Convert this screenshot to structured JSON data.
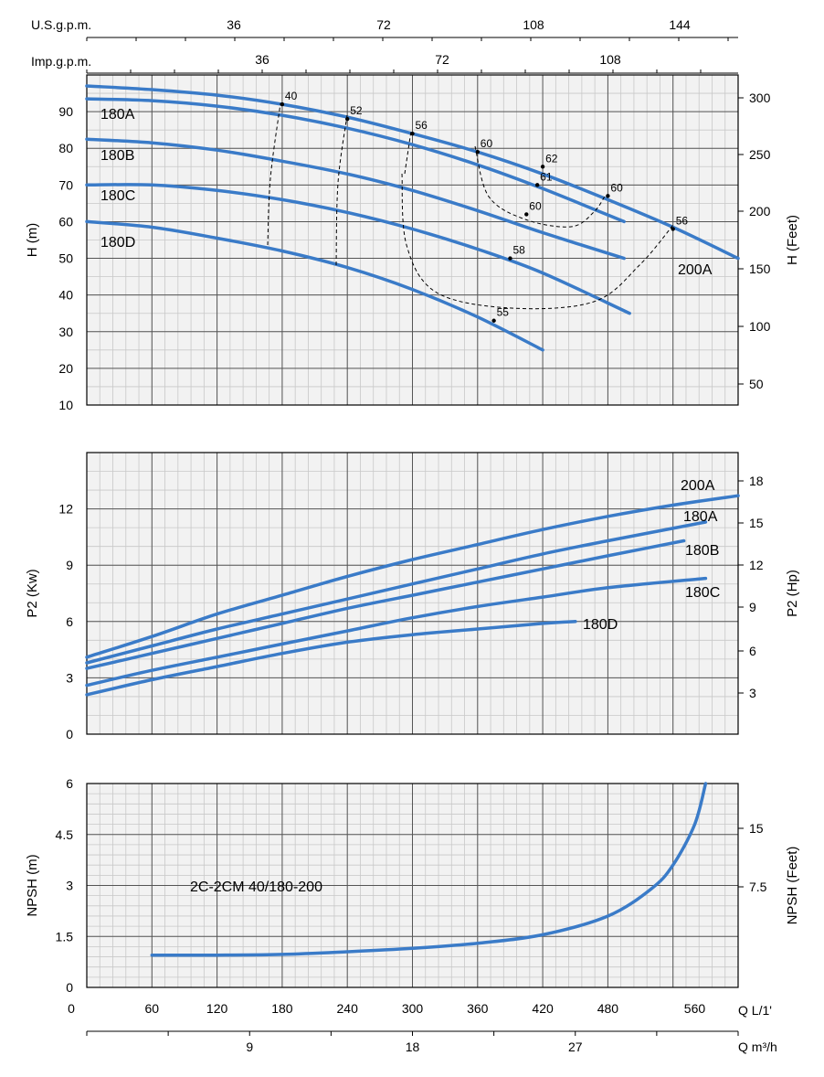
{
  "top_scales": {
    "usgpm_label": "U.S.g.p.m.",
    "usgpm_ticks": [
      "36",
      "72",
      "108",
      "144"
    ],
    "impgpm_label": "Imp.g.p.m.",
    "impgpm_ticks": [
      "36",
      "72",
      "108"
    ]
  },
  "bottom_scales": {
    "q_lmin_label": "Q L/1'",
    "q_m3h_label": "Q m³/h",
    "q_m3h_ticks": [
      "9",
      "18",
      "27"
    ]
  },
  "chart_data": [
    {
      "type": "line",
      "panel": "head",
      "ylabel": "H (m)",
      "ylabel_right": "H (Feet)",
      "xlim": [
        0,
        600
      ],
      "ylim": [
        10,
        100
      ],
      "yticks": [
        10,
        20,
        30,
        40,
        50,
        60,
        70,
        80,
        90
      ],
      "yticks_right": [
        50,
        100,
        150,
        200,
        250,
        300
      ],
      "series": [
        {
          "name": "200A",
          "x": [
            0,
            60,
            120,
            180,
            240,
            300,
            360,
            420,
            480,
            540,
            600
          ],
          "y": [
            97,
            96,
            94.5,
            92,
            88.5,
            84,
            79,
            73,
            66,
            58.5,
            50
          ]
        },
        {
          "name": "180A",
          "x": [
            0,
            60,
            120,
            180,
            240,
            300,
            360,
            420,
            495
          ],
          "y": [
            93.5,
            93,
            91.5,
            89,
            85.5,
            81,
            75.5,
            69,
            60
          ]
        },
        {
          "name": "180B",
          "x": [
            0,
            60,
            120,
            180,
            240,
            300,
            360,
            420,
            495
          ],
          "y": [
            82.5,
            81.5,
            79.5,
            76.5,
            73,
            68.5,
            63,
            57,
            50
          ]
        },
        {
          "name": "180C",
          "x": [
            0,
            60,
            120,
            180,
            240,
            300,
            360,
            420,
            500
          ],
          "y": [
            70,
            70,
            68.5,
            66,
            62.5,
            58,
            52.5,
            46,
            35
          ]
        },
        {
          "name": "180D",
          "x": [
            0,
            60,
            120,
            180,
            240,
            300,
            360,
            420
          ],
          "y": [
            60,
            58.5,
            55.5,
            52,
            47.5,
            41.5,
            34,
            25
          ]
        }
      ],
      "efficiency_labels": [
        {
          "text": "40",
          "x": 180,
          "y": 92
        },
        {
          "text": "52",
          "x": 240,
          "y": 88
        },
        {
          "text": "56",
          "x": 300,
          "y": 84
        },
        {
          "text": "60",
          "x": 360,
          "y": 79
        },
        {
          "text": "62",
          "x": 420,
          "y": 75
        },
        {
          "text": "61",
          "x": 415,
          "y": 70
        },
        {
          "text": "60",
          "x": 405,
          "y": 62
        },
        {
          "text": "60",
          "x": 480,
          "y": 67
        },
        {
          "text": "56",
          "x": 540,
          "y": 58
        },
        {
          "text": "58",
          "x": 390,
          "y": 50
        },
        {
          "text": "55",
          "x": 375,
          "y": 33
        }
      ]
    },
    {
      "type": "line",
      "panel": "power",
      "ylabel": "P2 (Kw)",
      "ylabel_right": "P2 (Hp)",
      "xlim": [
        0,
        600
      ],
      "ylim": [
        0,
        15
      ],
      "yticks": [
        0,
        3,
        6,
        9,
        12
      ],
      "yticks_right": [
        3,
        6,
        9,
        12,
        15,
        18
      ],
      "series": [
        {
          "name": "200A",
          "x": [
            0,
            60,
            120,
            180,
            240,
            300,
            360,
            420,
            480,
            540,
            600
          ],
          "y": [
            4.1,
            5.2,
            6.4,
            7.4,
            8.4,
            9.3,
            10.1,
            10.9,
            11.6,
            12.2,
            12.7
          ]
        },
        {
          "name": "180A",
          "x": [
            0,
            60,
            120,
            180,
            240,
            300,
            360,
            420,
            480,
            570
          ],
          "y": [
            3.8,
            4.7,
            5.6,
            6.4,
            7.2,
            8.0,
            8.8,
            9.6,
            10.3,
            11.3
          ]
        },
        {
          "name": "180B",
          "x": [
            0,
            60,
            120,
            180,
            240,
            300,
            360,
            420,
            480,
            550
          ],
          "y": [
            3.5,
            4.3,
            5.1,
            5.9,
            6.7,
            7.4,
            8.1,
            8.8,
            9.5,
            10.3
          ]
        },
        {
          "name": "180C",
          "x": [
            0,
            60,
            120,
            180,
            240,
            300,
            360,
            420,
            480,
            570
          ],
          "y": [
            2.6,
            3.4,
            4.1,
            4.8,
            5.5,
            6.2,
            6.8,
            7.3,
            7.8,
            8.3
          ]
        },
        {
          "name": "180D",
          "x": [
            0,
            60,
            120,
            180,
            240,
            300,
            360,
            420,
            450
          ],
          "y": [
            2.1,
            2.9,
            3.6,
            4.3,
            4.9,
            5.3,
            5.6,
            5.9,
            6.0
          ]
        }
      ]
    },
    {
      "type": "line",
      "panel": "npsh",
      "ylabel": "NPSH (m)",
      "ylabel_right": "NPSH (Feet)",
      "xlabel": "Q L/1'",
      "xlim": [
        0,
        600
      ],
      "ylim": [
        0,
        6
      ],
      "xticks": [
        0,
        60,
        120,
        180,
        240,
        300,
        360,
        420,
        480,
        560
      ],
      "xtick_labels": [
        "0",
        "60",
        "120",
        "180",
        "240",
        "300",
        "360",
        "420",
        "480",
        "560"
      ],
      "yticks": [
        0,
        1.5,
        3,
        4.5,
        6
      ],
      "ytick_labels": [
        "0",
        "1.5",
        "3",
        "4.5",
        "6"
      ],
      "yticks_right": [
        "7.5",
        "15"
      ],
      "annotation": "2C-2CM 40/180-200",
      "series": [
        {
          "name": "2C-2CM 40/180-200",
          "x": [
            60,
            120,
            180,
            240,
            300,
            360,
            420,
            480,
            520,
            540,
            560,
            570
          ],
          "y": [
            0.95,
            0.95,
            0.97,
            1.05,
            1.15,
            1.3,
            1.55,
            2.1,
            2.9,
            3.6,
            4.8,
            6.0
          ]
        }
      ]
    }
  ]
}
